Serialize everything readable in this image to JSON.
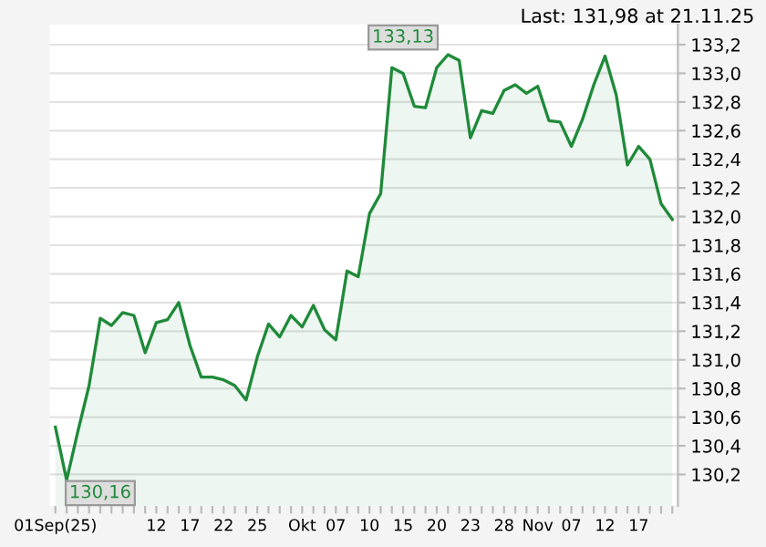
{
  "chart_data": {
    "type": "area",
    "title": "Last: 131,98 at 21.11.25",
    "categories": [
      "01Sep(25)",
      null,
      null,
      null,
      null,
      null,
      null,
      null,
      null,
      "12",
      null,
      null,
      "17",
      null,
      null,
      "22",
      null,
      null,
      "25",
      null,
      null,
      null,
      "Okt",
      null,
      null,
      "07",
      null,
      null,
      "10",
      null,
      null,
      "15",
      null,
      null,
      "20",
      null,
      null,
      "23",
      null,
      null,
      "28",
      null,
      null,
      "Nov",
      null,
      null,
      "07",
      null,
      null,
      "12",
      null,
      null,
      "17",
      null,
      null,
      null
    ],
    "series": [
      {
        "color": "#1f8a3a",
        "values": [
          130.53,
          130.16,
          130.5,
          130.82,
          131.29,
          131.24,
          131.33,
          131.31,
          131.05,
          131.26,
          131.28,
          131.4,
          131.1,
          130.88,
          130.88,
          130.86,
          130.82,
          130.72,
          131.02,
          131.25,
          131.16,
          131.31,
          131.23,
          131.38,
          131.21,
          131.14,
          131.62,
          131.58,
          132.02,
          132.16,
          133.04,
          133.0,
          132.77,
          132.76,
          133.04,
          133.13,
          133.09,
          132.55,
          132.74,
          132.72,
          132.88,
          132.92,
          132.86,
          132.91,
          132.67,
          132.66,
          132.49,
          132.68,
          132.92,
          133.12,
          132.85,
          132.36,
          132.49,
          132.4,
          132.09,
          131.98
        ]
      }
    ],
    "annotations": [
      "133,13",
      "130,16"
    ],
    "ylim": [
      129.98,
      133.34
    ],
    "yticks": [
      {
        "value": 130.2,
        "label": "130,2"
      },
      {
        "value": 130.4,
        "label": "130,4"
      },
      {
        "value": 130.6,
        "label": "130,6"
      },
      {
        "value": 130.8,
        "label": "130,8"
      },
      {
        "value": 131.0,
        "label": "131,0"
      },
      {
        "value": 131.2,
        "label": "131,2"
      },
      {
        "value": 131.4,
        "label": "131,4"
      },
      {
        "value": 131.6,
        "label": "131,6"
      },
      {
        "value": 131.8,
        "label": "131,8"
      },
      {
        "value": 132.0,
        "label": "132,0"
      },
      {
        "value": 132.2,
        "label": "132,2"
      },
      {
        "value": 132.4,
        "label": "132,4"
      },
      {
        "value": 132.6,
        "label": "132,6"
      },
      {
        "value": 132.8,
        "label": "132,8"
      },
      {
        "value": 133.0,
        "label": "133,0"
      },
      {
        "value": 133.2,
        "label": "133,2"
      }
    ],
    "grid": "y"
  }
}
